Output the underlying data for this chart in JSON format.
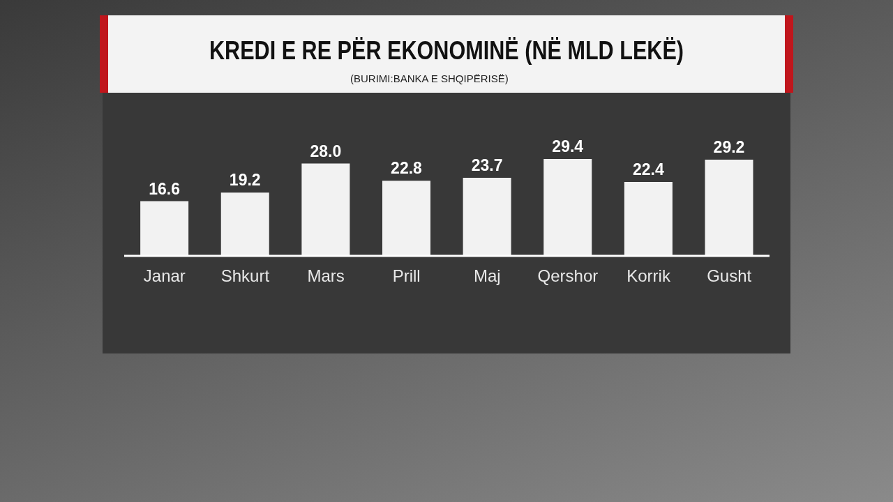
{
  "chart_data": {
    "type": "bar",
    "title": "KREDI E RE PËR EKONOMINË (NË MLD LEKË)",
    "annotations": [
      "(BURIMI:BANKA E SHQIPËRISË)"
    ],
    "categories": [
      "Janar",
      "Shkurt",
      "Mars",
      "Prill",
      "Maj",
      "Qershor",
      "Korrik",
      "Gusht"
    ],
    "values": [
      16.6,
      19.2,
      28.0,
      22.8,
      23.7,
      29.4,
      22.4,
      29.2
    ],
    "value_labels": [
      "16.6",
      "19.2",
      "28.0",
      "22.8",
      "23.7",
      "29.4",
      "22.4",
      "29.2"
    ],
    "color": "#f2f2f2"
  }
}
